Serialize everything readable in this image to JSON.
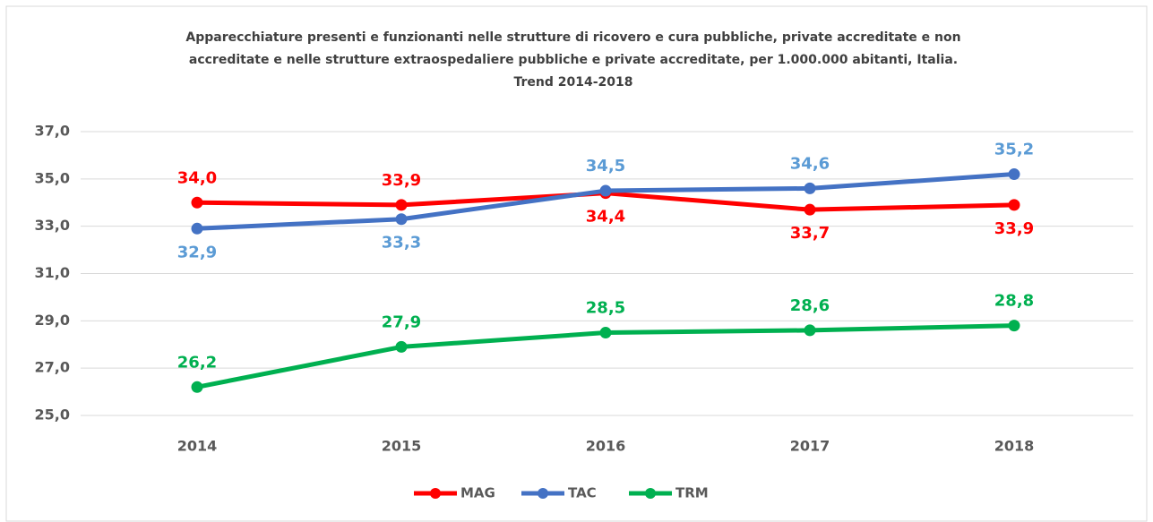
{
  "chart_data": {
    "type": "line",
    "title": [
      "Apparecchiature presenti e funzionanti nelle strutture di ricovero e cura pubbliche, private accreditate e non",
      "accreditate e nelle strutture extraospedaliere pubbliche e private accreditate, per 1.000.000 abitanti, Italia.",
      "Trend 2014-2018"
    ],
    "categories": [
      "2014",
      "2015",
      "2016",
      "2017",
      "2018"
    ],
    "series": [
      {
        "name": "MAG",
        "color": "#ff0000",
        "label_color": "#ff0000",
        "values": [
          34.0,
          33.9,
          34.4,
          33.7,
          33.9
        ],
        "value_labels": [
          "34,0",
          "33,9",
          "34,4",
          "33,7",
          "33,9"
        ]
      },
      {
        "name": "TAC",
        "color": "#4472c4",
        "label_color": "#5b9bd5",
        "values": [
          32.9,
          33.3,
          34.5,
          34.6,
          35.2
        ],
        "value_labels": [
          "32,9",
          "33,3",
          "34,5",
          "34,6",
          "35,2"
        ]
      },
      {
        "name": "TRM",
        "color": "#00b050",
        "label_color": "#00b050",
        "values": [
          26.2,
          27.9,
          28.5,
          28.6,
          28.8
        ],
        "value_labels": [
          "26,2",
          "27,9",
          "28,5",
          "28,6",
          "28,8"
        ]
      }
    ],
    "ylim": [
      25,
      37
    ],
    "yticks": [
      {
        "value": 25,
        "label": "25,0"
      },
      {
        "value": 27,
        "label": "27,0"
      },
      {
        "value": 29,
        "label": "29,0"
      },
      {
        "value": 31,
        "label": "31,0"
      },
      {
        "value": 33,
        "label": "33,0"
      },
      {
        "value": 35,
        "label": "35,0"
      },
      {
        "value": 37,
        "label": "37,0"
      }
    ],
    "grid": true,
    "legend": "bottom"
  }
}
